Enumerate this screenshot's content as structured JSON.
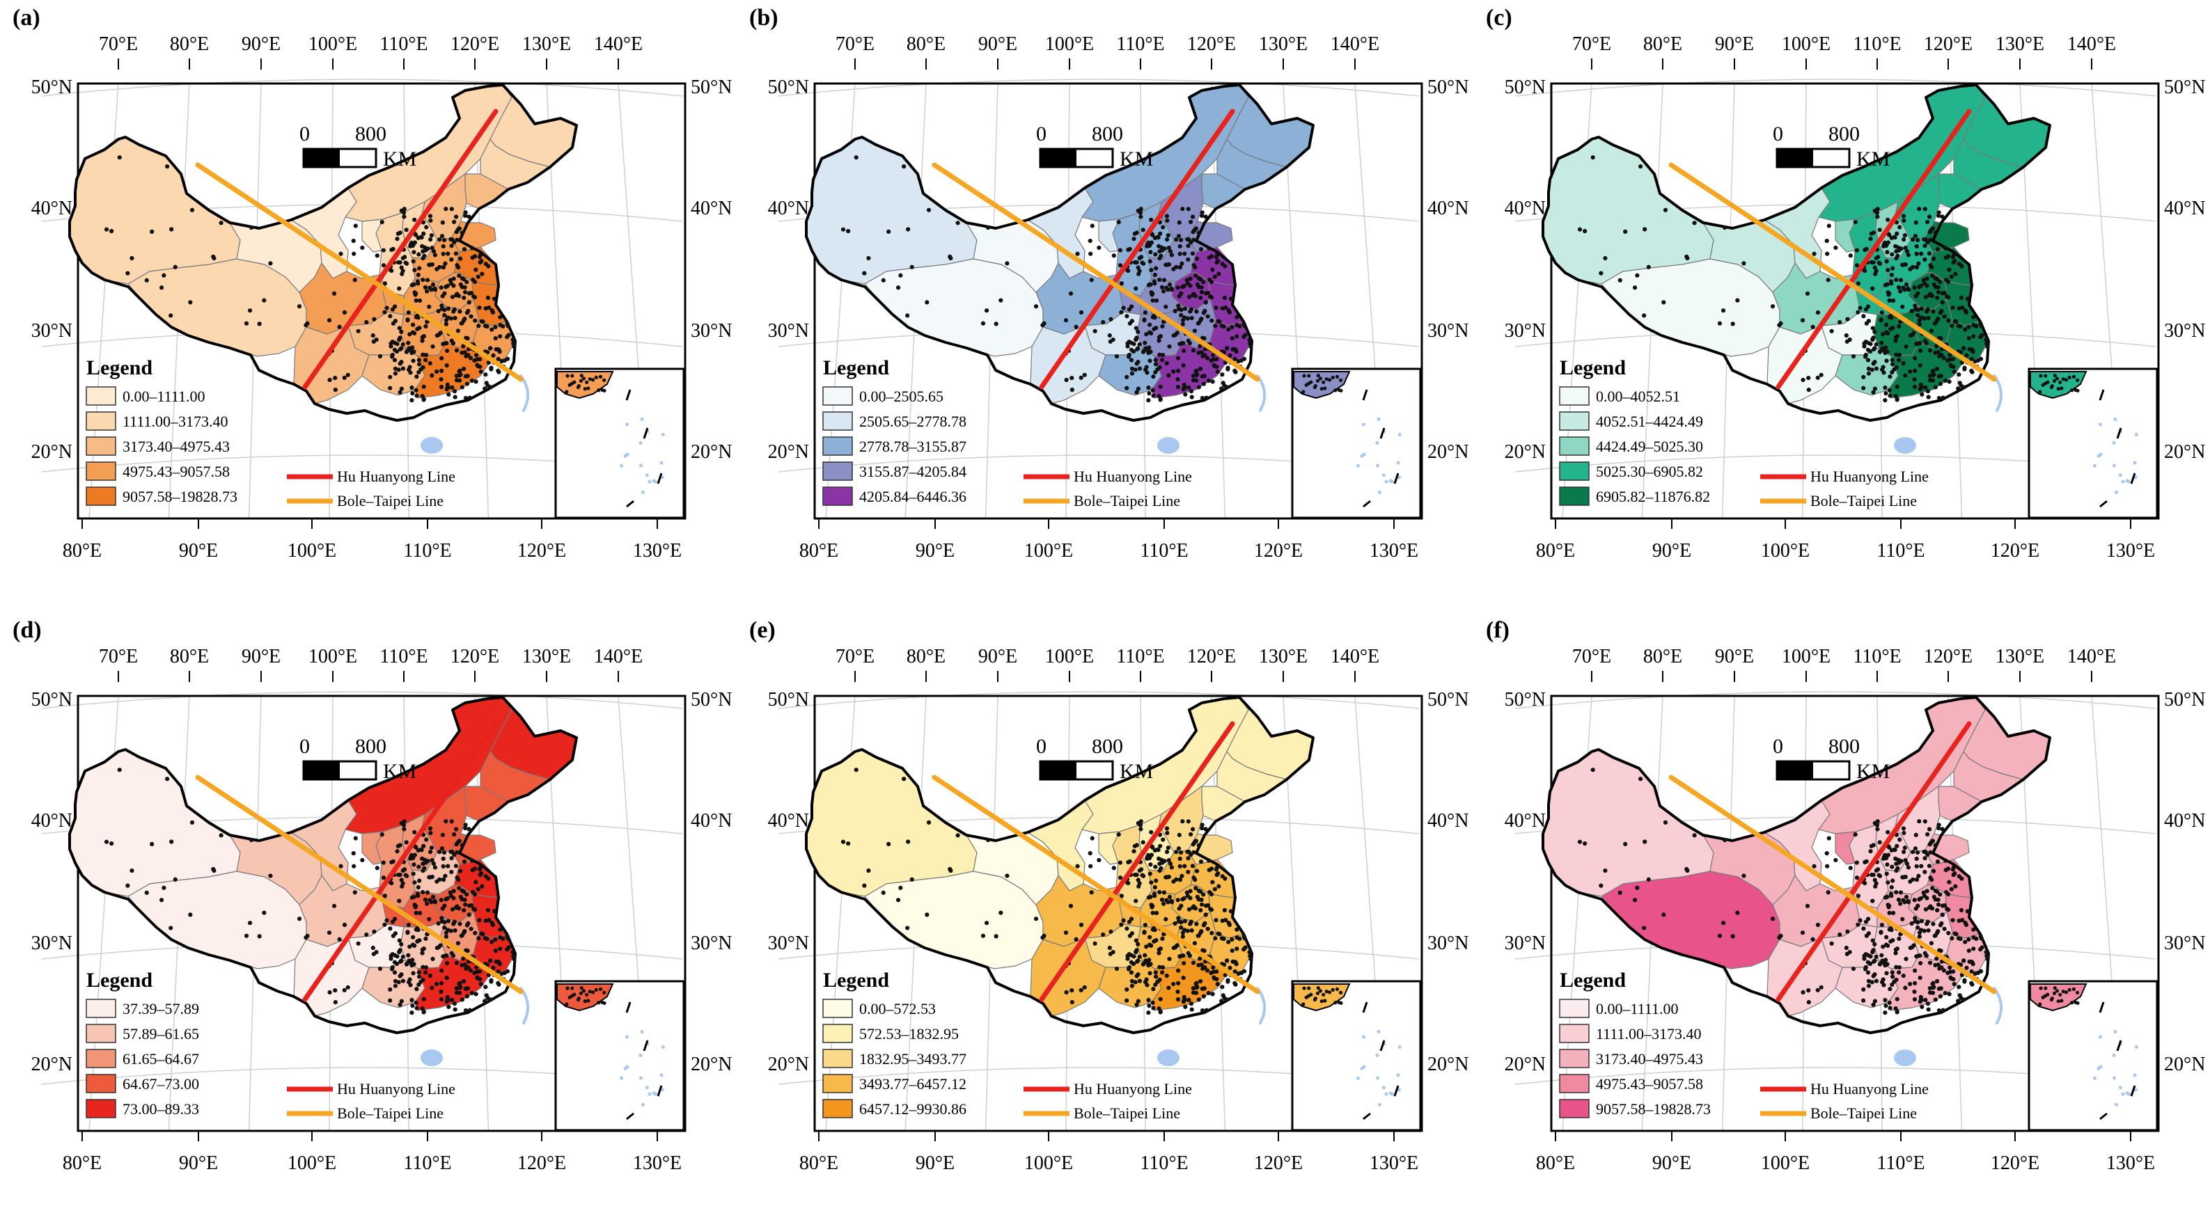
{
  "scale_bar": {
    "zero": "0",
    "distance": "800",
    "unit": "KM"
  },
  "axes": {
    "top_lon": [
      "70°E",
      "80°E",
      "90°E",
      "100°E",
      "110°E",
      "120°E",
      "130°E",
      "140°E"
    ],
    "bottom_lon": [
      "80°E",
      "90°E",
      "100°E",
      "110°E",
      "120°E",
      "130°E"
    ],
    "lat": [
      "50°N",
      "40°N",
      "30°N",
      "20°N"
    ]
  },
  "lines_legend": {
    "hu": "Hu Huanyong Line",
    "bole": "Bole–Taipei Line"
  },
  "colors": {
    "hu_line": "#e8231e",
    "bole_line": "#f5a623",
    "points": "#111111",
    "boundary": "#000000",
    "inset_sea": "#a9c8ef"
  },
  "panels": [
    {
      "id": "a",
      "label": "(a)",
      "legend_title": "Legend",
      "classes": [
        "0.00–1111.00",
        "1111.00–3173.40",
        "3173.40–4975.43",
        "4975.43–9057.58",
        "9057.58–19828.73"
      ],
      "colors": [
        "#fdebd4",
        "#fbd8b0",
        "#f7bc85",
        "#f39d55",
        "#ee7a24"
      ]
    },
    {
      "id": "b",
      "label": "(b)",
      "legend_title": "Legend",
      "classes": [
        "0.00–2505.65",
        "2505.65–2778.78",
        "2778.78–3155.87",
        "3155.87–4205.84",
        "4205.84–6446.36"
      ],
      "colors": [
        "#f3f8fb",
        "#d8e7f2",
        "#8cb0d6",
        "#8a8fc6",
        "#8b34a6"
      ]
    },
    {
      "id": "c",
      "label": "(c)",
      "legend_title": "Legend",
      "classes": [
        "0.00–4052.51",
        "4052.51–4424.49",
        "4424.49–5025.30",
        "5025.30–6905.82",
        "6905.82–11876.82"
      ],
      "colors": [
        "#f2faf8",
        "#c7ebe2",
        "#8dd7c3",
        "#23b38d",
        "#0b7a4a"
      ]
    },
    {
      "id": "d",
      "label": "(d)",
      "legend_title": "Legend",
      "classes": [
        "37.39–57.89",
        "57.89–61.65",
        "61.65–64.67",
        "64.67–73.00",
        "73.00–89.33"
      ],
      "colors": [
        "#fdf0ec",
        "#f7c6b2",
        "#f29678",
        "#ee5b3c",
        "#e8261e"
      ]
    },
    {
      "id": "e",
      "label": "(e)",
      "legend_title": "Legend",
      "classes": [
        "0.00–572.53",
        "572.53–1832.95",
        "1832.95–3493.77",
        "3493.77–6457.12",
        "6457.12–9930.86"
      ],
      "colors": [
        "#fffde8",
        "#fdf0b4",
        "#fbd98a",
        "#f6b94a",
        "#f2961d"
      ]
    },
    {
      "id": "f",
      "label": "(f)",
      "legend_title": "Legend",
      "classes": [
        "0.00–1111.00",
        "1111.00–3173.40",
        "3173.40–4975.43",
        "4975.43–9057.58",
        "9057.58–19828.73"
      ],
      "colors": [
        "#fdecef",
        "#f9cfd6",
        "#f4b2bd",
        "#ef8aa1",
        "#e8538a"
      ]
    }
  ]
}
